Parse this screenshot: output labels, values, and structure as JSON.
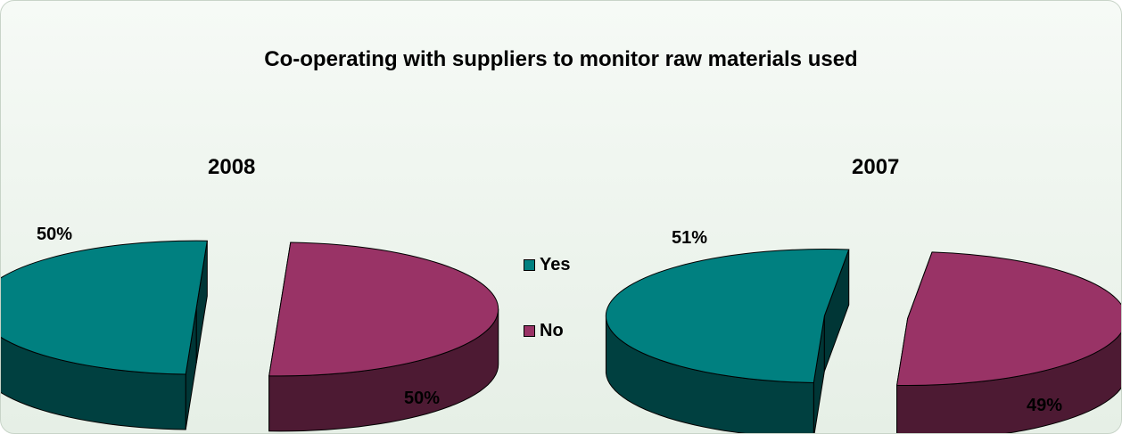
{
  "chart_data": {
    "type": "pie",
    "title": "Co-operating with suppliers to monitor raw materials used",
    "legend": {
      "placement": "center",
      "entries": [
        "Yes",
        "No"
      ]
    },
    "colors": {
      "Yes": "#008080",
      "No": "#993366"
    },
    "charts": [
      {
        "label": "2008",
        "slices": [
          {
            "name": "Yes",
            "value": 50,
            "label": "50%"
          },
          {
            "name": "No",
            "value": 50,
            "label": "50%"
          }
        ]
      },
      {
        "label": "2007",
        "slices": [
          {
            "name": "Yes",
            "value": 51,
            "label": "51%"
          },
          {
            "name": "No",
            "value": 49,
            "label": "49%"
          }
        ]
      }
    ]
  }
}
